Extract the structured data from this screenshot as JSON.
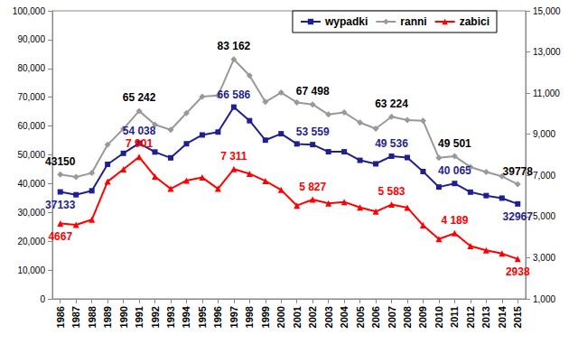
{
  "chart_data": {
    "type": "line",
    "categories": [
      "1986",
      "1987",
      "1988",
      "1989",
      "1990",
      "1991",
      "1992",
      "1993",
      "1994",
      "1995",
      "1996",
      "1997",
      "1998",
      "1999",
      "2000",
      "2001",
      "2002",
      "2003",
      "2004",
      "2005",
      "2006",
      "2007",
      "2008",
      "2009",
      "2010",
      "2011",
      "2012",
      "2013",
      "2014",
      "2015"
    ],
    "series": [
      {
        "name": "wypadki",
        "color": "#1f1f8f",
        "marker": "square",
        "line_style": "solid",
        "values": [
          37133,
          36145,
          37516,
          46700,
          50532,
          54038,
          50989,
          48960,
          53850,
          56904,
          57911,
          66586,
          61855,
          55106,
          57331,
          53799,
          53559,
          51078,
          51069,
          48100,
          46876,
          49536,
          49054,
          44196,
          38832,
          40065,
          37046,
          35847,
          34970,
          32967
        ],
        "value_labels": [
          "37133",
          null,
          null,
          null,
          null,
          "54 038",
          null,
          null,
          null,
          null,
          null,
          "66 586",
          null,
          null,
          null,
          null,
          "53 559",
          null,
          null,
          null,
          null,
          "49 536",
          null,
          null,
          null,
          "40 065",
          null,
          null,
          null,
          "32967"
        ]
      },
      {
        "name": "ranni",
        "color": "#999999",
        "marker": "diamond",
        "line_style": "solid",
        "values": [
          43150,
          42300,
          43700,
          53500,
          59000,
          65242,
          60500,
          58700,
          64500,
          70200,
          70600,
          83162,
          77500,
          68400,
          71600,
          68200,
          67498,
          64000,
          64700,
          61200,
          59100,
          63224,
          62100,
          61800,
          48952,
          49501,
          45792,
          44059,
          42545,
          39778
        ],
        "value_labels": [
          "43150",
          null,
          null,
          null,
          null,
          "65 242",
          null,
          null,
          null,
          null,
          null,
          "83 162",
          null,
          null,
          null,
          null,
          "67 498",
          null,
          null,
          null,
          null,
          "63 224",
          null,
          null,
          null,
          "49 501",
          null,
          null,
          null,
          "39778"
        ]
      },
      {
        "name": "zabici",
        "color": "#ff0000",
        "marker": "triangle",
        "line_style": "solid",
        "axis": "y2",
        "values": [
          4667,
          4600,
          4850,
          6700,
          7300,
          7901,
          6950,
          6350,
          6750,
          6900,
          6350,
          7311,
          7080,
          6730,
          6294,
          5534,
          5827,
          5640,
          5712,
          5444,
          5243,
          5583,
          5437,
          4572,
          3907,
          4189,
          3571,
          3357,
          3202,
          2938
        ],
        "value_labels": [
          "4667",
          null,
          null,
          null,
          null,
          "7 901",
          null,
          null,
          null,
          null,
          null,
          "7 311",
          null,
          null,
          null,
          null,
          "5 827",
          null,
          null,
          null,
          null,
          "5 583",
          null,
          null,
          null,
          "4 189",
          null,
          null,
          null,
          "2938"
        ]
      }
    ],
    "ylim": [
      0,
      100000
    ],
    "yticks": [
      0,
      10000,
      20000,
      30000,
      40000,
      50000,
      60000,
      70000,
      80000,
      90000,
      100000
    ],
    "y2lim": [
      1000,
      15000
    ],
    "y2ticks": [
      1000,
      3000,
      5000,
      7000,
      9000,
      11000,
      13000,
      15000
    ],
    "grid": false,
    "legend": "upper right",
    "data_labels": true
  }
}
